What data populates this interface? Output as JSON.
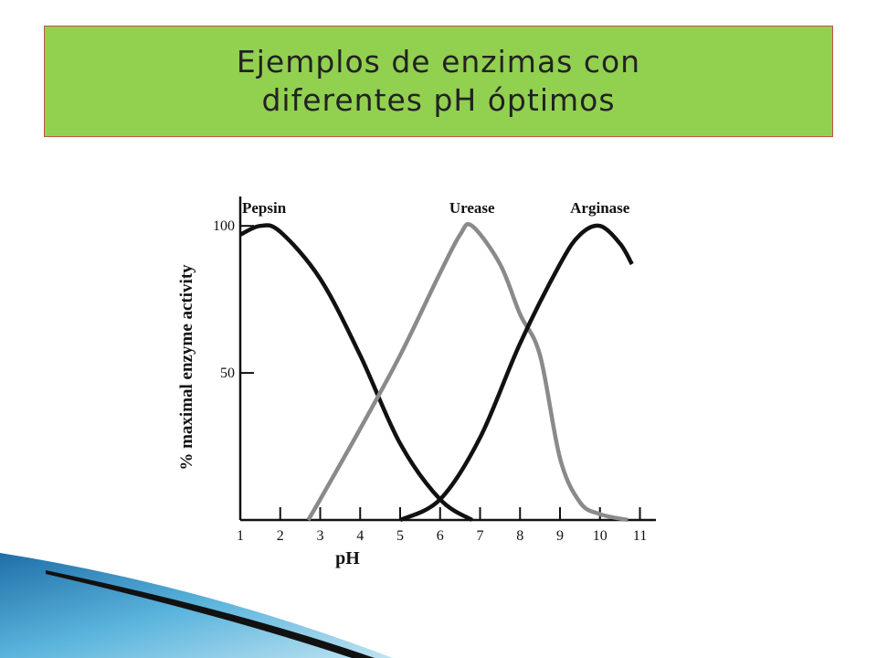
{
  "slide": {
    "title": [
      "Ejemplos de enzimas con",
      "diferentes pH óptimos"
    ]
  },
  "chart_data": {
    "type": "line",
    "x_label": "pH",
    "y_label": "% maximal enzyme activity",
    "xlim": [
      1,
      11.4
    ],
    "ylim": [
      0,
      110
    ],
    "xticks": [
      1,
      2,
      3,
      4,
      5,
      6,
      7,
      8,
      9,
      10,
      11
    ],
    "yticks": [
      50,
      100
    ],
    "series": [
      {
        "name": "Pepsin",
        "color": "#111111",
        "x": [
          1,
          1.5,
          2,
          3,
          4,
          5,
          6,
          6.8
        ],
        "values": [
          97,
          100,
          98,
          82,
          56,
          26,
          7,
          0
        ]
      },
      {
        "name": "Urease",
        "color": "#8a8a8a",
        "x": [
          2.7,
          3,
          4,
          5,
          6,
          6.5,
          6.8,
          7.5,
          8,
          8.5,
          9,
          9.5,
          10,
          10.7
        ],
        "values": [
          0,
          7,
          31,
          56,
          84,
          97,
          100,
          87,
          70,
          56,
          21,
          6,
          2,
          0
        ]
      },
      {
        "name": "Arginase",
        "color": "#111111",
        "x": [
          5,
          6,
          7,
          8,
          9,
          9.5,
          10,
          10.5,
          10.8
        ],
        "values": [
          0,
          7,
          28,
          60,
          87,
          97,
          100,
          94,
          87
        ]
      }
    ]
  }
}
